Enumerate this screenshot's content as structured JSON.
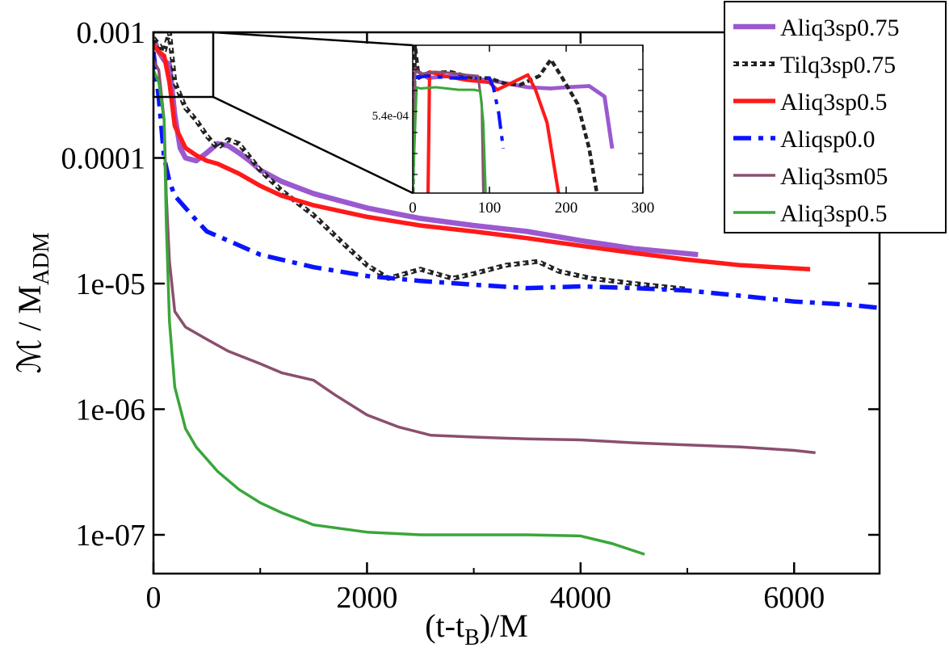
{
  "chart_data": {
    "type": "line",
    "title": "",
    "xlabel": "(t-t_B)/M",
    "xlabel_main": "(t-t",
    "xlabel_sub": "B",
    "xlabel_tail": ")/M",
    "ylabel_main": "ℳ / M",
    "ylabel_sub": "ADM",
    "yscale": "log",
    "xlim": [
      0,
      6800
    ],
    "ylim": [
      5e-08,
      0.001
    ],
    "grid": false,
    "legend_position": "top-right",
    "x_ticks": [
      0,
      2000,
      4000,
      6000
    ],
    "x_tick_labels": [
      "0",
      "2000",
      "4000",
      "6000"
    ],
    "y_ticks": [
      1e-07,
      1e-06,
      1e-05,
      0.0001,
      0.001
    ],
    "y_tick_labels": [
      "1e-07",
      "1e-06",
      "1e-05",
      "0.0001",
      "0.001"
    ],
    "series": [
      {
        "name": "Aliq3sp0.75",
        "color": "#9b59d0",
        "style": "thick",
        "x": [
          0,
          50,
          100,
          150,
          200,
          250,
          300,
          400,
          500,
          600,
          700,
          800,
          900,
          1000,
          1200,
          1500,
          2000,
          2500,
          3000,
          3500,
          4000,
          4500,
          5100
        ],
        "y": [
          0.0009,
          0.0007,
          0.0006,
          0.00055,
          0.00022,
          0.00012,
          0.0001,
          9.5e-05,
          0.00011,
          0.00013,
          0.000125,
          0.00011,
          9.5e-05,
          8e-05,
          6.5e-05,
          5.2e-05,
          4e-05,
          3.3e-05,
          2.9e-05,
          2.6e-05,
          2.2e-05,
          1.9e-05,
          1.7e-05
        ]
      },
      {
        "name": "Tilq3sp0.75",
        "color": "#222222",
        "style": "dashed",
        "x": [
          0,
          50,
          100,
          150,
          200,
          300,
          400,
          500,
          600,
          700,
          800,
          1000,
          1200,
          1500,
          1800,
          2000,
          2200,
          2500,
          2800,
          3000,
          3300,
          3600,
          3800,
          4100,
          4500,
          5000
        ],
        "y": [
          0.0009,
          0.0008,
          0.0007,
          0.001,
          0.0004,
          0.00025,
          0.0002,
          0.00015,
          0.00012,
          0.00014,
          0.00013,
          8e-05,
          5.5e-05,
          3.5e-05,
          2e-05,
          1.4e-05,
          1.1e-05,
          1.3e-05,
          1.1e-05,
          1.2e-05,
          1.4e-05,
          1.5e-05,
          1.25e-05,
          1.1e-05,
          1e-05,
          9e-06
        ]
      },
      {
        "name": "Aliq3sp0.5",
        "color": "#ff1a1a",
        "style": "solid",
        "x": [
          0,
          50,
          100,
          150,
          200,
          300,
          400,
          500,
          600,
          800,
          1000,
          1200,
          1500,
          2000,
          2500,
          3000,
          3500,
          4000,
          4500,
          5000,
          5500,
          6150
        ],
        "y": [
          0.0008,
          0.0007,
          0.00065,
          0.0004,
          0.00018,
          0.00012,
          0.000105,
          9.5e-05,
          9e-05,
          7.5e-05,
          6e-05,
          5e-05,
          4.2e-05,
          3.4e-05,
          2.9e-05,
          2.6e-05,
          2.3e-05,
          2e-05,
          1.75e-05,
          1.55e-05,
          1.4e-05,
          1.3e-05
        ]
      },
      {
        "name": "Aliqsp0.0",
        "color": "#0a14ff",
        "style": "dashdot",
        "x": [
          0,
          50,
          100,
          150,
          200,
          300,
          400,
          500,
          700,
          1000,
          1500,
          2000,
          2500,
          3000,
          3500,
          4000,
          4500,
          5000,
          5500,
          6000,
          6500,
          6800
        ],
        "y": [
          0.0007,
          0.0003,
          0.0001,
          6.5e-05,
          5e-05,
          4e-05,
          3.2e-05,
          2.6e-05,
          2.2e-05,
          1.7e-05,
          1.35e-05,
          1.15e-05,
          1.05e-05,
          9.8e-06,
          9.2e-06,
          9.5e-06,
          9.2e-06,
          8.8e-06,
          8e-06,
          7.2e-06,
          6.8e-06,
          6.4e-06
        ]
      },
      {
        "name": "Aliq3sm05",
        "color": "#8b4f6e",
        "style": "thin",
        "x": [
          0,
          50,
          100,
          120,
          150,
          200,
          300,
          500,
          700,
          1000,
          1200,
          1500,
          1700,
          2000,
          2300,
          2600,
          3000,
          3500,
          4000,
          4500,
          5000,
          5500,
          6000,
          6200
        ],
        "y": [
          0.0006,
          0.0005,
          0.0002,
          5e-05,
          1.5e-05,
          6e-06,
          4.5e-06,
          3.6e-06,
          2.9e-06,
          2.3e-06,
          1.95e-06,
          1.7e-06,
          1.3e-06,
          9e-07,
          7.2e-07,
          6.2e-07,
          6e-07,
          5.8e-07,
          5.7e-07,
          5.4e-07,
          5.2e-07,
          5e-07,
          4.7e-07,
          4.5e-07
        ]
      },
      {
        "name": "Aliq3sp0.5",
        "color": "#3aa63a",
        "style": "thin",
        "x": [
          0,
          50,
          100,
          120,
          150,
          200,
          300,
          400,
          600,
          800,
          1000,
          1200,
          1500,
          2000,
          2500,
          3000,
          3500,
          4000,
          4300,
          4600
        ],
        "y": [
          0.0005,
          0.0004,
          0.0002,
          3e-05,
          5e-06,
          1.5e-06,
          7e-07,
          5e-07,
          3.2e-07,
          2.3e-07,
          1.8e-07,
          1.5e-07,
          1.2e-07,
          1.05e-07,
          1e-07,
          1e-07,
          1e-07,
          9.8e-08,
          8.5e-08,
          7e-08
        ]
      }
    ],
    "inset": {
      "xlim": [
        0,
        300
      ],
      "x_ticks": [
        0,
        100,
        200,
        300
      ],
      "x_tick_labels": [
        "0",
        "100",
        "200",
        "300"
      ],
      "y_tick_label": "5.4e-04",
      "ylim": [
        0.0001,
        0.001
      ],
      "series": [
        {
          "name": "Aliq3sp0.75",
          "x": [
            0,
            20,
            50,
            100,
            150,
            180,
            200,
            230,
            250,
            260
          ],
          "y": [
            0.0007,
            0.0006,
            0.00062,
            0.00058,
            0.00052,
            0.00051,
            0.00052,
            0.00053,
            0.00045,
            0.0002
          ]
        },
        {
          "name": "Tilq3sp0.75",
          "x": [
            0,
            3,
            8,
            20,
            50,
            80,
            100,
            120,
            140,
            165,
            180,
            195,
            215,
            230,
            240
          ],
          "y": [
            0.0001,
            0.001,
            0.0006,
            0.00065,
            0.00066,
            0.0006,
            0.0006,
            0.00055,
            0.00054,
            0.00062,
            0.0008,
            0.0006,
            0.0004,
            0.0002,
            0.0001
          ]
        },
        {
          "name": "Aliq3sp0.5",
          "x": [
            20,
            22,
            40,
            70,
            100,
            110,
            130,
            150,
            160,
            175,
            190
          ],
          "y": [
            0.0001,
            0.00066,
            0.00062,
            0.00058,
            0.00056,
            0.0005,
            0.00056,
            0.00063,
            0.0005,
            0.0003,
            0.0001
          ]
        },
        {
          "name": "Aliqsp0.0",
          "x": [
            0,
            20,
            50,
            80,
            100,
            105,
            112,
            118
          ],
          "y": [
            0.0006,
            0.00062,
            0.0006,
            0.0006,
            0.0006,
            0.00052,
            0.00035,
            0.0002
          ]
        },
        {
          "name": "Aliq3sm05",
          "x": [
            0,
            3,
            10,
            30,
            50,
            70,
            85,
            90,
            92
          ],
          "y": [
            0.0001,
            0.0007,
            0.00064,
            0.00066,
            0.00065,
            0.00063,
            0.00062,
            0.0004,
            0.0001
          ]
        },
        {
          "name": "Aliq3sp0.5",
          "x": [
            0,
            5,
            10,
            30,
            60,
            80,
            88,
            92,
            95
          ],
          "y": [
            0.0001,
            0.00052,
            0.00051,
            0.00052,
            0.0005,
            0.0005,
            0.00049,
            0.0003,
            0.0001
          ]
        }
      ]
    }
  }
}
